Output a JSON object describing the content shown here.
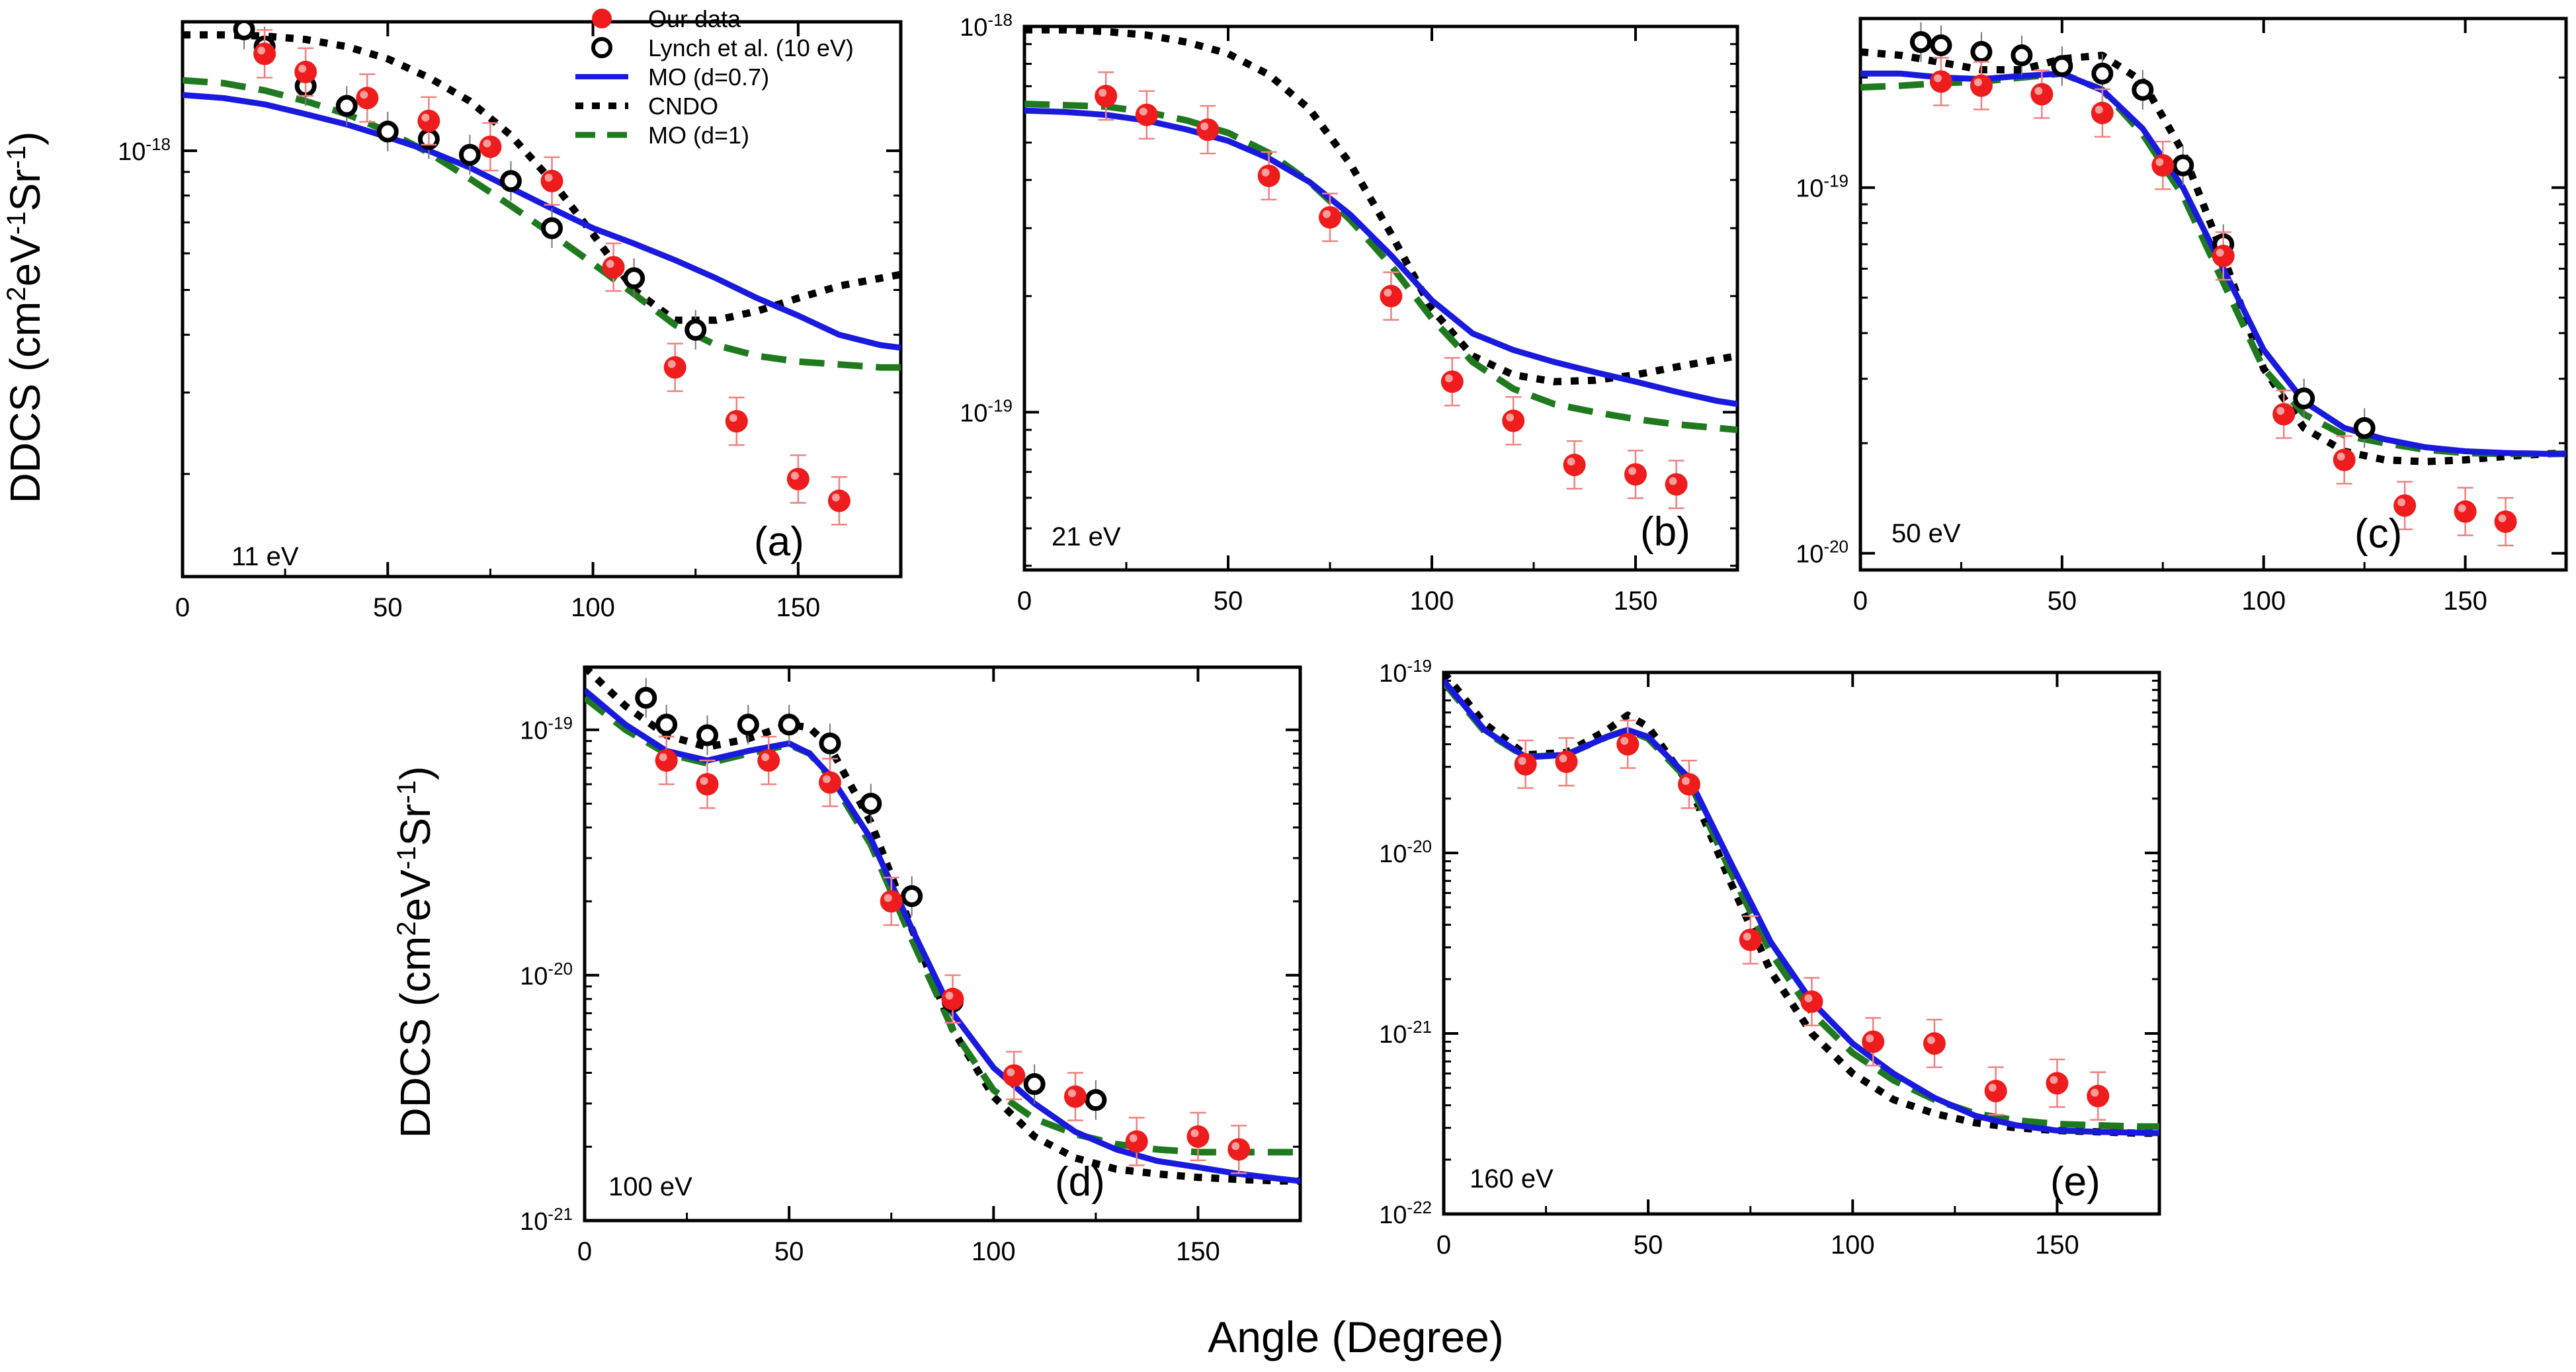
{
  "figure": {
    "ylabel_main": "DDCS (cm",
    "ylabel_sup1": "2",
    "ylabel_mid": "eV",
    "ylabel_sup2": "-1",
    "ylabel_mid2": "Sr",
    "ylabel_sup3": "-1",
    "ylabel_end": ")",
    "xlabel": "Angle (Degree)"
  },
  "legend": {
    "items": [
      {
        "label": "Our data",
        "style": "red-dot"
      },
      {
        "label": "Lynch et al. (10 eV)",
        "style": "open-circle"
      },
      {
        "label": "MO (d=0.7)",
        "style": "blue-line"
      },
      {
        "label": "CNDO",
        "style": "black-dot"
      },
      {
        "label": "MO (d=1)",
        "style": "green-dash"
      }
    ]
  },
  "colors": {
    "red": "#ee1c1c",
    "blue": "#1a1adf",
    "black": "#000000",
    "green": "#1f7a1f",
    "errorbar": "#f08080"
  },
  "chart_data": [
    {
      "type": "scatter",
      "energy_label": "11 eV",
      "panel_label": "(a)",
      "xlim": [
        0,
        175
      ],
      "ylim": [
        1.2e-19,
        1.9e-18
      ],
      "log_y": true,
      "xticks": [
        0,
        50,
        100,
        150
      ],
      "yticks": [
        {
          "value": 1e-18,
          "base": "10",
          "exp": "-18"
        }
      ],
      "our_data": {
        "x": [
          20,
          30,
          45,
          60,
          75,
          90,
          105,
          120,
          135,
          150,
          160
        ],
        "y": [
          1.62e-18,
          1.48e-18,
          1.3e-18,
          1.16e-18,
          1.02e-18,
          8.6e-19,
          5.6e-19,
          3.4e-19,
          2.6e-19,
          1.95e-19,
          1.75e-19
        ]
      },
      "lynch": {
        "x": [
          15,
          20,
          30,
          40,
          50,
          60,
          70,
          80,
          90,
          110,
          125
        ],
        "y": [
          1.83e-18,
          1.68e-18,
          1.38e-18,
          1.25e-18,
          1.1e-18,
          1.06e-18,
          9.8e-19,
          8.6e-19,
          6.8e-19,
          5.3e-19,
          4.1e-19
        ]
      },
      "mo_07": {
        "x": [
          0,
          10,
          20,
          30,
          40,
          50,
          60,
          70,
          80,
          90,
          100,
          110,
          120,
          130,
          140,
          150,
          160,
          170,
          175
        ],
        "y": [
          1.32e-18,
          1.3e-18,
          1.26e-18,
          1.2e-18,
          1.14e-18,
          1.07e-18,
          1e-18,
          9.2e-19,
          8.3e-19,
          7.5e-19,
          6.8e-19,
          6.3e-19,
          5.8e-19,
          5.3e-19,
          4.8e-19,
          4.4e-19,
          4e-19,
          3.8e-19,
          3.75e-19
        ]
      },
      "cndo": {
        "x": [
          0,
          10,
          20,
          30,
          40,
          50,
          60,
          70,
          80,
          90,
          100,
          110,
          120,
          130,
          140,
          150,
          160,
          170,
          175
        ],
        "y": [
          1.78e-18,
          1.78e-18,
          1.77e-18,
          1.74e-18,
          1.68e-18,
          1.58e-18,
          1.44e-18,
          1.28e-18,
          1.08e-18,
          8.6e-19,
          6.6e-19,
          5e-19,
          4.3e-19,
          4.3e-19,
          4.5e-19,
          4.8e-19,
          5.1e-19,
          5.3e-19,
          5.4e-19
        ]
      },
      "mo_1": {
        "x": [
          0,
          10,
          20,
          30,
          40,
          50,
          60,
          70,
          80,
          90,
          100,
          110,
          120,
          130,
          140,
          150,
          160,
          170,
          175
        ],
        "y": [
          1.42e-18,
          1.4e-18,
          1.35e-18,
          1.28e-18,
          1.2e-18,
          1.1e-18,
          9.9e-19,
          8.7e-19,
          7.6e-19,
          6.6e-19,
          5.7e-19,
          4.9e-19,
          4.2e-19,
          3.8e-19,
          3.6e-19,
          3.5e-19,
          3.45e-19,
          3.4e-19,
          3.4e-19
        ]
      }
    },
    {
      "type": "scatter",
      "energy_label": "21 eV",
      "panel_label": "(b)",
      "xlim": [
        0,
        175
      ],
      "ylim": [
        3.9e-20,
        1e-18
      ],
      "log_y": true,
      "xticks": [
        0,
        50,
        100,
        150
      ],
      "yticks": [
        {
          "value": 1e-18,
          "base": "10",
          "exp": "-18"
        },
        {
          "value": 1e-19,
          "base": "10",
          "exp": "-19"
        }
      ],
      "our_data": {
        "x": [
          20,
          30,
          45,
          60,
          75,
          90,
          105,
          120,
          135,
          150,
          160
        ],
        "y": [
          6.6e-19,
          5.9e-19,
          5.4e-19,
          4.1e-19,
          3.2e-19,
          2e-19,
          1.2e-19,
          9.5e-20,
          7.3e-20,
          6.9e-20,
          6.5e-20
        ]
      },
      "mo_07": {
        "x": [
          0,
          10,
          20,
          30,
          40,
          50,
          60,
          70,
          80,
          90,
          100,
          110,
          120,
          130,
          140,
          150,
          160,
          170,
          175
        ],
        "y": [
          6.05e-19,
          6e-19,
          5.9e-19,
          5.7e-19,
          5.4e-19,
          5.05e-19,
          4.55e-19,
          3.95e-19,
          3.25e-19,
          2.55e-19,
          1.95e-19,
          1.6e-19,
          1.45e-19,
          1.35e-19,
          1.27e-19,
          1.2e-19,
          1.13e-19,
          1.07e-19,
          1.05e-19
        ]
      },
      "cndo": {
        "x": [
          0,
          10,
          20,
          30,
          40,
          50,
          60,
          70,
          80,
          90,
          100,
          110,
          120,
          130,
          140,
          150,
          160,
          170,
          175
        ],
        "y": [
          9.8e-19,
          9.8e-19,
          9.7e-19,
          9.5e-19,
          9.1e-19,
          8.5e-19,
          7.5e-19,
          6.1e-19,
          4.4e-19,
          2.9e-19,
          1.85e-19,
          1.4e-19,
          1.25e-19,
          1.2e-19,
          1.21e-19,
          1.25e-19,
          1.31e-19,
          1.37e-19,
          1.4e-19
        ]
      },
      "mo_1": {
        "x": [
          0,
          10,
          20,
          30,
          40,
          50,
          60,
          70,
          80,
          90,
          100,
          110,
          120,
          130,
          140,
          150,
          160,
          170,
          175
        ],
        "y": [
          6.3e-19,
          6.25e-19,
          6.2e-19,
          6e-19,
          5.7e-19,
          5.3e-19,
          4.7e-19,
          3.95e-19,
          3.15e-19,
          2.4e-19,
          1.75e-19,
          1.35e-19,
          1.15e-19,
          1.05e-19,
          1e-19,
          9.6e-20,
          9.3e-20,
          9.1e-20,
          9e-20
        ]
      }
    },
    {
      "type": "scatter",
      "energy_label": "50 eV",
      "panel_label": "(c)",
      "xlim": [
        0,
        175
      ],
      "ylim": [
        9e-21,
        2.9e-19
      ],
      "log_y": true,
      "xticks": [
        0,
        50,
        100,
        150
      ],
      "yticks": [
        {
          "value": 1e-19,
          "base": "10",
          "exp": "-19"
        },
        {
          "value": 1e-20,
          "base": "10",
          "exp": "-20"
        }
      ],
      "our_data": {
        "x": [
          20,
          30,
          45,
          60,
          75,
          90,
          105,
          120,
          135,
          150,
          160
        ],
        "y": [
          1.95e-19,
          1.9e-19,
          1.8e-19,
          1.6e-19,
          1.15e-19,
          6.5e-20,
          2.4e-20,
          1.8e-20,
          1.35e-20,
          1.3e-20,
          1.22e-20
        ]
      },
      "lynch": {
        "x": [
          15,
          20,
          30,
          40,
          50,
          60,
          70,
          80,
          90,
          110,
          125
        ],
        "y": [
          2.5e-19,
          2.45e-19,
          2.35e-19,
          2.3e-19,
          2.15e-19,
          2.05e-19,
          1.85e-19,
          1.15e-19,
          7e-20,
          2.65e-20,
          2.2e-20
        ]
      },
      "mo_07": {
        "x": [
          0,
          10,
          20,
          30,
          40,
          50,
          60,
          70,
          80,
          90,
          100,
          110,
          120,
          130,
          140,
          150,
          160,
          170,
          175
        ],
        "y": [
          2.05e-19,
          2.05e-19,
          2e-19,
          1.98e-19,
          2.02e-19,
          2.05e-19,
          1.85e-19,
          1.45e-19,
          1e-19,
          6e-20,
          3.6e-20,
          2.6e-20,
          2.2e-20,
          2.05e-20,
          1.95e-20,
          1.9e-20,
          1.88e-20,
          1.87e-20,
          1.87e-20
        ]
      },
      "cndo": {
        "x": [
          0,
          10,
          20,
          30,
          40,
          50,
          60,
          70,
          80,
          90,
          100,
          110,
          120,
          130,
          140,
          150,
          160,
          170,
          175
        ],
        "y": [
          2.35e-19,
          2.3e-19,
          2.2e-19,
          2.1e-19,
          2.1e-19,
          2.25e-19,
          2.3e-19,
          1.95e-19,
          1.25e-19,
          6.5e-20,
          3.2e-20,
          2.2e-20,
          1.9e-20,
          1.8e-20,
          1.78e-20,
          1.8e-20,
          1.84e-20,
          1.87e-20,
          1.88e-20
        ]
      },
      "mo_1": {
        "x": [
          0,
          10,
          20,
          30,
          40,
          50,
          60,
          70,
          80,
          90,
          100,
          110,
          120,
          130,
          140,
          150,
          160,
          170,
          175
        ],
        "y": [
          1.88e-19,
          1.9e-19,
          1.93e-19,
          1.95e-19,
          2e-19,
          2.05e-19,
          1.85e-19,
          1.4e-19,
          9.5e-20,
          5.5e-20,
          3.2e-20,
          2.4e-20,
          2.1e-20,
          2e-20,
          1.92e-20,
          1.88e-20,
          1.87e-20,
          1.87e-20,
          1.87e-20
        ]
      }
    },
    {
      "type": "scatter",
      "energy_label": "100 eV",
      "panel_label": "(d)",
      "xlim": [
        0,
        175
      ],
      "ylim": [
        1e-21,
        1.8e-19
      ],
      "log_y": true,
      "xticks": [
        0,
        50,
        100,
        150
      ],
      "yticks": [
        {
          "value": 1e-19,
          "base": "10",
          "exp": "-19"
        },
        {
          "value": 1e-20,
          "base": "10",
          "exp": "-20"
        },
        {
          "value": 1e-21,
          "base": "10",
          "exp": "-21"
        }
      ],
      "our_data": {
        "x": [
          20,
          30,
          45,
          60,
          75,
          90,
          105,
          120,
          135,
          150,
          160
        ],
        "y": [
          7.5e-20,
          6e-20,
          7.5e-20,
          6.1e-20,
          2e-20,
          8e-21,
          3.9e-21,
          3.2e-21,
          2.1e-21,
          2.2e-21,
          1.95e-21
        ]
      },
      "lynch": {
        "x": [
          15,
          20,
          30,
          40,
          50,
          60,
          70,
          80,
          90,
          110,
          125
        ],
        "y": [
          1.35e-19,
          1.05e-19,
          9.5e-20,
          1.05e-19,
          1.05e-19,
          8.8e-20,
          5e-20,
          2.1e-20,
          7.8e-21,
          3.6e-21,
          3.1e-21
        ]
      },
      "mo_07": {
        "x": [
          0,
          10,
          20,
          30,
          40,
          50,
          55,
          60,
          70,
          80,
          90,
          100,
          110,
          120,
          130,
          140,
          150,
          160,
          170,
          175
        ],
        "y": [
          1.45e-19,
          1.05e-19,
          8.2e-20,
          7.5e-20,
          8.2e-20,
          8.8e-20,
          8e-20,
          6.5e-20,
          3.6e-20,
          1.55e-20,
          7e-21,
          4.2e-21,
          3e-21,
          2.3e-21,
          1.95e-21,
          1.75e-21,
          1.65e-21,
          1.55e-21,
          1.48e-21,
          1.45e-21
        ]
      },
      "cndo": {
        "x": [
          0,
          10,
          20,
          30,
          40,
          50,
          55,
          60,
          70,
          80,
          90,
          100,
          110,
          120,
          130,
          140,
          150,
          160,
          170,
          175
        ],
        "y": [
          1.8e-19,
          1.25e-19,
          9.5e-20,
          8.5e-20,
          9.2e-20,
          1.05e-19,
          1.02e-19,
          8.5e-20,
          4.2e-20,
          1.55e-20,
          6e-21,
          3.2e-21,
          2.2e-21,
          1.8e-21,
          1.62e-21,
          1.55e-21,
          1.5e-21,
          1.47e-21,
          1.45e-21,
          1.45e-21
        ]
      },
      "mo_1": {
        "x": [
          0,
          10,
          20,
          30,
          40,
          50,
          55,
          60,
          70,
          80,
          90,
          100,
          110,
          120,
          130,
          140,
          150,
          160,
          170,
          175
        ],
        "y": [
          1.35e-19,
          1e-19,
          8e-20,
          7.3e-20,
          8e-20,
          8.7e-20,
          8e-20,
          6.4e-20,
          3.4e-20,
          1.4e-20,
          6e-21,
          3.4e-21,
          2.6e-21,
          2.25e-21,
          2.05e-21,
          1.95e-21,
          1.9e-21,
          1.9e-21,
          1.9e-21,
          1.9e-21
        ]
      }
    },
    {
      "type": "scatter",
      "energy_label": "160 eV",
      "panel_label": "(e)",
      "xlim": [
        0,
        175
      ],
      "ylim": [
        1e-22,
        1e-19
      ],
      "log_y": true,
      "xticks": [
        0,
        50,
        100,
        150
      ],
      "yticks": [
        {
          "value": 1e-19,
          "base": "10",
          "exp": "-19"
        },
        {
          "value": 1e-20,
          "base": "10",
          "exp": "-20"
        },
        {
          "value": 1e-21,
          "base": "10",
          "exp": "-21"
        },
        {
          "value": 1e-22,
          "base": "10",
          "exp": "-22"
        }
      ],
      "our_data": {
        "x": [
          20,
          30,
          45,
          60,
          75,
          90,
          105,
          120,
          135,
          150,
          160
        ],
        "y": [
          3.1e-20,
          3.2e-20,
          4e-20,
          2.4e-20,
          3.3e-21,
          1.5e-21,
          9e-22,
          8.8e-22,
          4.8e-22,
          5.3e-22,
          4.5e-22
        ]
      },
      "mo_07": {
        "x": [
          0,
          10,
          20,
          30,
          40,
          45,
          50,
          60,
          70,
          80,
          90,
          100,
          110,
          120,
          130,
          140,
          150,
          160,
          170,
          175
        ],
        "y": [
          9e-20,
          4.8e-20,
          3.4e-20,
          3.5e-20,
          4.4e-20,
          4.8e-20,
          4.4e-20,
          2.6e-20,
          9e-21,
          3.2e-21,
          1.5e-21,
          8.8e-22,
          6e-22,
          4.4e-22,
          3.5e-22,
          3.1e-22,
          2.9e-22,
          2.85e-22,
          2.82e-22,
          2.8e-22
        ]
      },
      "cndo": {
        "x": [
          0,
          10,
          20,
          30,
          40,
          45,
          50,
          60,
          70,
          80,
          90,
          100,
          110,
          120,
          130,
          140,
          150,
          160,
          170,
          175
        ],
        "y": [
          1e-19,
          5.2e-20,
          3.5e-20,
          3.6e-20,
          4.8e-20,
          5.8e-20,
          5e-20,
          2.4e-20,
          7e-21,
          2.2e-21,
          1e-21,
          6e-22,
          4.3e-22,
          3.6e-22,
          3.2e-22,
          3e-22,
          2.9e-22,
          2.85e-22,
          2.8e-22,
          2.8e-22
        ]
      },
      "mo_1": {
        "x": [
          0,
          10,
          20,
          30,
          40,
          45,
          50,
          60,
          70,
          80,
          90,
          100,
          110,
          120,
          130,
          140,
          150,
          160,
          170,
          175
        ],
        "y": [
          8.8e-20,
          4.7e-20,
          3.4e-20,
          3.5e-20,
          4.4e-20,
          4.8e-20,
          4.3e-20,
          2.5e-20,
          8e-21,
          2.8e-21,
          1.3e-21,
          7.8e-22,
          5.5e-22,
          4.3e-22,
          3.6e-22,
          3.3e-22,
          3.15e-22,
          3.1e-22,
          3.05e-22,
          3.05e-22
        ]
      }
    }
  ]
}
